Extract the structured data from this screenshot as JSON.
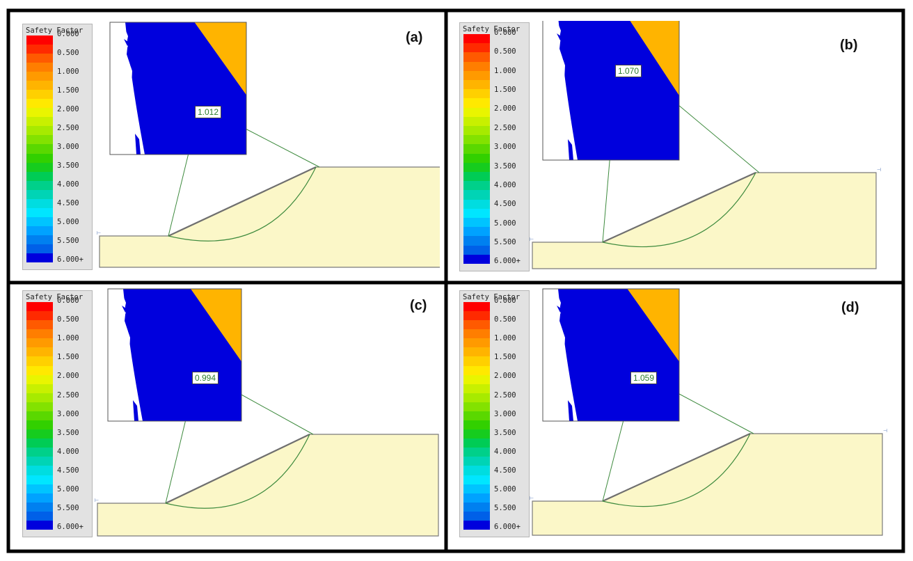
{
  "legend": {
    "title": "Safety Factor",
    "labels": [
      "0.000",
      "0.500",
      "1.000",
      "1.500",
      "2.000",
      "2.500",
      "3.000",
      "3.500",
      "4.000",
      "4.500",
      "5.000",
      "5.500",
      "6.000+"
    ],
    "colors": [
      "#ff0000",
      "#ff2a00",
      "#ff5a00",
      "#ff7e00",
      "#ff9a00",
      "#ffb400",
      "#ffd000",
      "#ffe900",
      "#e9f500",
      "#c8f000",
      "#a7ea00",
      "#83e200",
      "#5ad800",
      "#32d000",
      "#16cc1e",
      "#00cc55",
      "#00d08a",
      "#00d4b5",
      "#00dde0",
      "#00e6ff",
      "#00c4ff",
      "#00a2ff",
      "#0080f0",
      "#0060e8",
      "#0000dd"
    ]
  },
  "panels": [
    {
      "id": "a",
      "label": "(a)",
      "factor": "1.012"
    },
    {
      "id": "b",
      "label": "(b)",
      "factor": "1.070"
    },
    {
      "id": "c",
      "label": "(c)",
      "factor": "0.994"
    },
    {
      "id": "d",
      "label": "(d)",
      "factor": "1.059"
    }
  ],
  "colors": {
    "slope_fill": "#fbf7c8",
    "outline": "#7a7a7a",
    "slip_surface": "#3d8a3d",
    "inset_orange": "#ff9a00",
    "frame": "#000000"
  }
}
